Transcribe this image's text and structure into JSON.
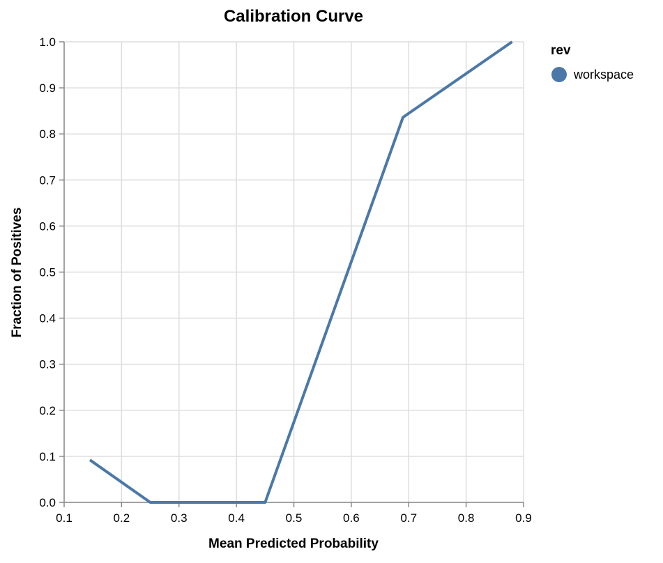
{
  "chart_data": {
    "type": "line",
    "title": "Calibration Curve",
    "xlabel": "Mean Predicted Probability",
    "ylabel": "Fraction of Positives",
    "xlim": [
      0.1,
      0.9
    ],
    "ylim": [
      0.0,
      1.0
    ],
    "x_ticks": [
      "0.1",
      "0.2",
      "0.3",
      "0.4",
      "0.5",
      "0.6",
      "0.7",
      "0.8",
      "0.9"
    ],
    "y_ticks": [
      "0.0",
      "0.1",
      "0.2",
      "0.3",
      "0.4",
      "0.5",
      "0.6",
      "0.7",
      "0.8",
      "0.9",
      "1.0"
    ],
    "grid": true,
    "legend": {
      "title": "rev",
      "placement": "top-right",
      "entries": [
        {
          "label": "workspace",
          "color": "#4c78a8"
        }
      ]
    },
    "series": [
      {
        "name": "workspace",
        "color": "#4c78a8",
        "x": [
          0.145,
          0.25,
          0.45,
          0.69,
          0.88
        ],
        "y": [
          0.092,
          0.0,
          0.0,
          0.836,
          1.0
        ]
      }
    ]
  }
}
